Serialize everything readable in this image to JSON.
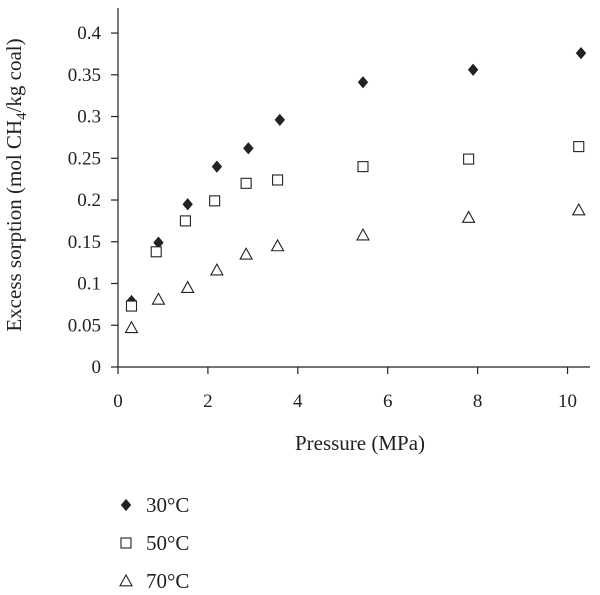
{
  "chart_data": {
    "type": "scatter",
    "title": "",
    "xlabel": "Pressure (MPa)",
    "ylabel": {
      "prefix": "Excess sorption (mol CH",
      "subscript": "4",
      "suffix": "/kg coal)"
    },
    "xlim": [
      0,
      10.5
    ],
    "ylim": [
      0,
      0.43
    ],
    "x_ticks": [
      0,
      2,
      4,
      6,
      8,
      10
    ],
    "x_tick_labels": [
      "0",
      "2",
      "4",
      "6",
      "8",
      "10"
    ],
    "y_ticks": [
      0,
      0.05,
      0.1,
      0.15,
      0.2,
      0.25,
      0.3,
      0.35,
      0.4
    ],
    "y_tick_labels": [
      "0",
      "0.05",
      "0.1",
      "0.15",
      "0.2",
      "0.25",
      "0.3",
      "0.35",
      "0.4"
    ],
    "grid": false,
    "legend_position": "bottom-left",
    "series": [
      {
        "name": "30°C",
        "marker": "filled-diamond",
        "color": "#222222",
        "points": [
          [
            0.3,
            0.079
          ],
          [
            0.9,
            0.149
          ],
          [
            1.55,
            0.195
          ],
          [
            2.2,
            0.24
          ],
          [
            2.9,
            0.262
          ],
          [
            3.6,
            0.296
          ],
          [
            5.45,
            0.341
          ],
          [
            7.9,
            0.356
          ],
          [
            10.3,
            0.376
          ]
        ]
      },
      {
        "name": "50°C",
        "marker": "open-square",
        "color": "#222222",
        "points": [
          [
            0.3,
            0.073
          ],
          [
            0.85,
            0.138
          ],
          [
            1.5,
            0.175
          ],
          [
            2.15,
            0.199
          ],
          [
            2.85,
            0.22
          ],
          [
            3.55,
            0.224
          ],
          [
            5.45,
            0.24
          ],
          [
            7.8,
            0.249
          ],
          [
            10.25,
            0.264
          ]
        ]
      },
      {
        "name": "70°C",
        "marker": "open-triangle",
        "color": "#222222",
        "points": [
          [
            0.3,
            0.047
          ],
          [
            0.9,
            0.081
          ],
          [
            1.55,
            0.095
          ],
          [
            2.2,
            0.116
          ],
          [
            2.85,
            0.135
          ],
          [
            3.55,
            0.145
          ],
          [
            5.45,
            0.158
          ],
          [
            7.8,
            0.179
          ],
          [
            10.25,
            0.188
          ]
        ]
      }
    ]
  }
}
